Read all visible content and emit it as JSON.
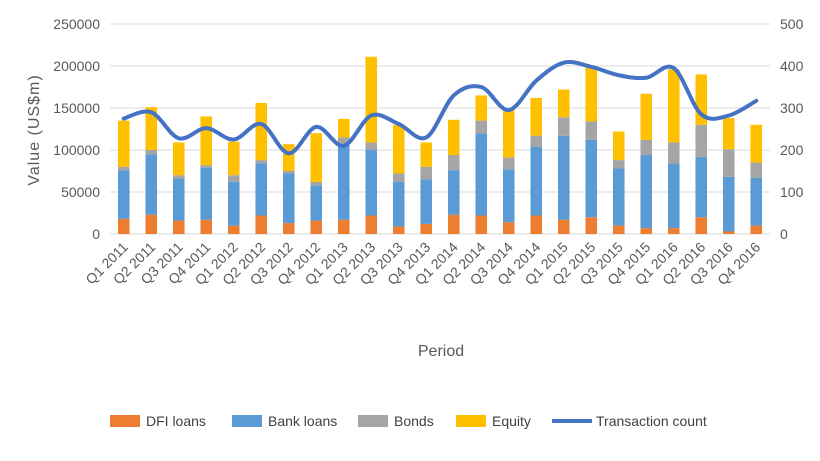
{
  "chart_data": {
    "type": "bar",
    "stacked": true,
    "title": "",
    "xlabel": "Period",
    "ylabel": "Value (US$m)",
    "ylabel_right": "",
    "ylim": [
      0,
      250000
    ],
    "ylim_right": [
      0,
      500
    ],
    "yticks": [
      "0",
      "50000",
      "100000",
      "150000",
      "200000",
      "250000"
    ],
    "yticks_right": [
      "0",
      "100",
      "200",
      "300",
      "400",
      "500"
    ],
    "grid": true,
    "legend_position": "bottom",
    "categories": [
      "Q1 2011",
      "Q2 2011",
      "Q3 2011",
      "Q4 2011",
      "Q1 2012",
      "Q2 2012",
      "Q3 2012",
      "Q4 2012",
      "Q1 2013",
      "Q2 2013",
      "Q3 2013",
      "Q4 2013",
      "Q1 2014",
      "Q2 2014",
      "Q3 2014",
      "Q4 2014",
      "Q1 2015",
      "Q2 2015",
      "Q3 2015",
      "Q4 2015",
      "Q1 2016",
      "Q2 2016",
      "Q3 2016",
      "Q4 2016"
    ],
    "series": [
      {
        "name": "DFI loans",
        "kind": "bar",
        "axis": "left",
        "color": "#ED7D31",
        "values": [
          18000,
          23000,
          16000,
          17000,
          10000,
          22000,
          13000,
          16000,
          17000,
          22000,
          9000,
          12000,
          23000,
          22000,
          14000,
          22000,
          17000,
          20000,
          10000,
          7000,
          7000,
          20000,
          3000,
          10000
        ]
      },
      {
        "name": "Bank loans",
        "kind": "bar",
        "axis": "left",
        "color": "#5B9BD5",
        "values": [
          58000,
          72000,
          50000,
          62000,
          52000,
          62000,
          59000,
          42000,
          90000,
          78000,
          53000,
          53000,
          53000,
          98000,
          63000,
          82000,
          100000,
          92000,
          68000,
          87000,
          77000,
          72000,
          65000,
          57000
        ]
      },
      {
        "name": "Bonds",
        "kind": "bar",
        "axis": "left",
        "color": "#A5A5A5",
        "values": [
          4000,
          5000,
          4000,
          3000,
          8000,
          4000,
          3000,
          4000,
          8000,
          9000,
          10000,
          15000,
          18000,
          15000,
          14000,
          13000,
          22000,
          22000,
          10000,
          18000,
          25000,
          38000,
          33000,
          18000
        ]
      },
      {
        "name": "Equity",
        "kind": "bar",
        "axis": "left",
        "color": "#FFC000",
        "values": [
          55000,
          51000,
          39000,
          58000,
          40000,
          68000,
          32000,
          58000,
          22000,
          102000,
          58000,
          29000,
          42000,
          30000,
          56000,
          45000,
          33000,
          64000,
          34000,
          55000,
          87000,
          60000,
          37000,
          45000
        ]
      },
      {
        "name": "Transaction count",
        "kind": "line",
        "axis": "right",
        "color": "#4472C4",
        "values": [
          275,
          290,
          228,
          252,
          225,
          262,
          192,
          255,
          210,
          282,
          262,
          230,
          330,
          350,
          295,
          365,
          408,
          398,
          378,
          372,
          395,
          285,
          282,
          317
        ]
      }
    ]
  }
}
